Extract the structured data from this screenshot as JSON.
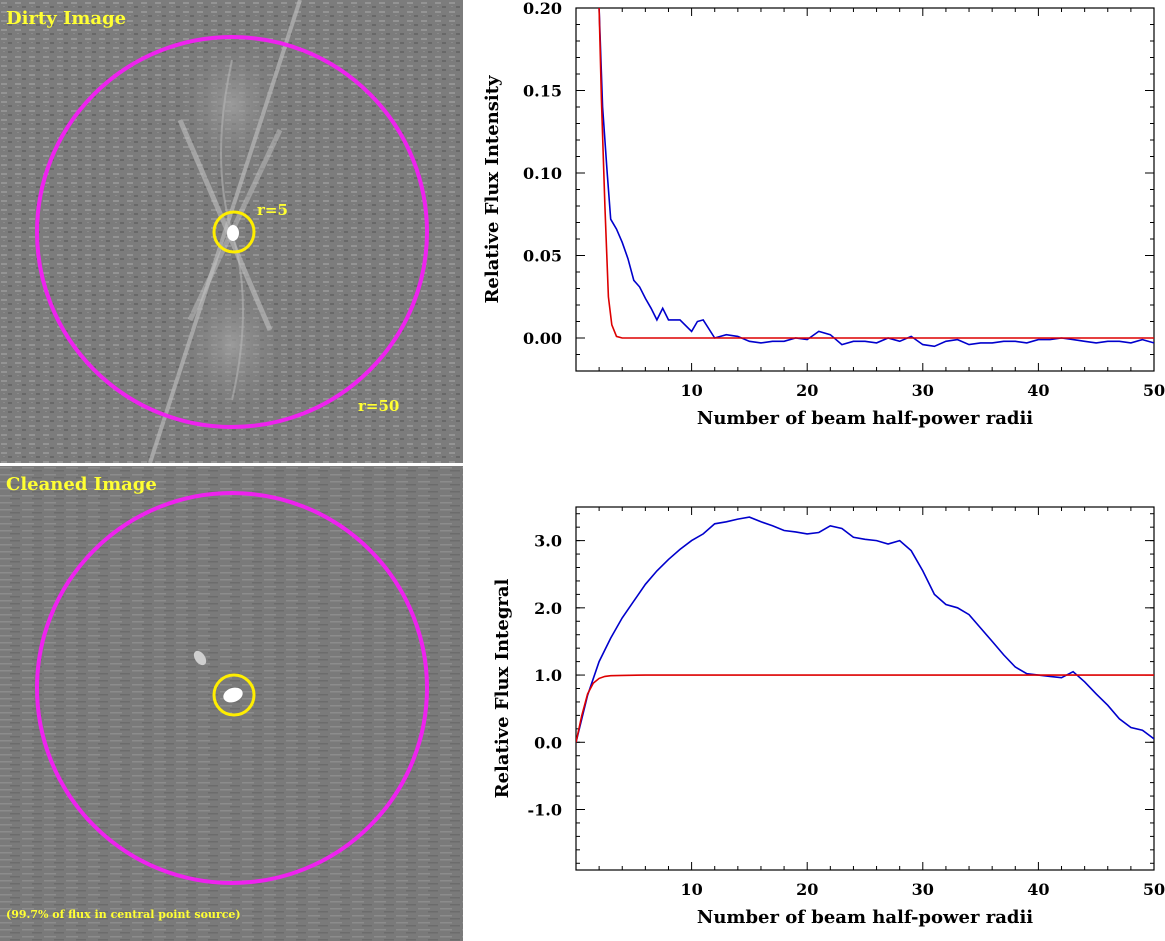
{
  "images": {
    "dirty": {
      "title": "Dirty Image",
      "inner_label": "r=5",
      "outer_label": "r=50"
    },
    "cleaned": {
      "title": "Cleaned Image",
      "note": "(99.7% of flux in central point source)"
    }
  },
  "colors": {
    "ring_outer": "#ee22ee",
    "ring_inner": "#ffee00",
    "series_blue": "#0000cc",
    "series_red": "#dd0000",
    "label_yellow": "#ffff33"
  },
  "chart_data": [
    {
      "type": "line",
      "title": "",
      "xlabel": "Number of beam half-power radii",
      "ylabel": "Relative Flux Intensity",
      "xlim": [
        0,
        50
      ],
      "ylim": [
        -0.02,
        0.2
      ],
      "xticks": [
        10,
        20,
        30,
        40,
        50
      ],
      "yticks": [
        0.0,
        0.05,
        0.1,
        0.15,
        0.2
      ],
      "ytick_labels": [
        "0.00",
        "0.05",
        "0.10",
        "0.15",
        "0.20"
      ],
      "grid": false,
      "series": [
        {
          "color": "blue",
          "x": [
            2.0,
            2.3,
            2.7,
            3.0,
            3.5,
            4.0,
            4.5,
            5.0,
            5.5,
            6.0,
            6.5,
            7.0,
            7.5,
            8.0,
            9.0,
            10.0,
            10.5,
            11.0,
            12.0,
            13.0,
            14.0,
            15.0,
            16.0,
            17.0,
            18.0,
            19.0,
            20.0,
            21.0,
            22.0,
            23.0,
            24.0,
            25.0,
            26.0,
            27.0,
            28.0,
            29.0,
            30.0,
            31.0,
            32.0,
            33.0,
            34.0,
            35.0,
            36.0,
            37.0,
            38.0,
            39.0,
            40.0,
            41.0,
            42.0,
            43.0,
            44.0,
            45.0,
            46.0,
            47.0,
            48.0,
            49.0,
            50.0
          ],
          "y": [
            0.2,
            0.14,
            0.1,
            0.072,
            0.066,
            0.058,
            0.048,
            0.035,
            0.031,
            0.024,
            0.018,
            0.011,
            0.018,
            0.011,
            0.011,
            0.004,
            0.01,
            0.011,
            0.0,
            0.002,
            0.001,
            -0.002,
            -0.003,
            -0.002,
            -0.002,
            0.0,
            -0.001,
            0.004,
            0.002,
            -0.004,
            -0.002,
            -0.002,
            -0.003,
            0.0,
            -0.002,
            0.001,
            -0.004,
            -0.005,
            -0.002,
            -0.001,
            -0.004,
            -0.003,
            -0.003,
            -0.002,
            -0.002,
            -0.003,
            -0.001,
            -0.001,
            0.0,
            -0.001,
            -0.002,
            -0.003,
            -0.002,
            -0.002,
            -0.003,
            -0.001,
            -0.003
          ]
        },
        {
          "color": "red",
          "x": [
            2.0,
            2.2,
            2.5,
            2.8,
            3.1,
            3.5,
            4.0,
            6.0,
            10.0,
            20.0,
            30.0,
            40.0,
            50.0
          ],
          "y": [
            0.2,
            0.145,
            0.08,
            0.025,
            0.008,
            0.001,
            0.0,
            0.0,
            0.0,
            0.0,
            0.0,
            0.0,
            0.0
          ]
        }
      ]
    },
    {
      "type": "line",
      "title": "",
      "xlabel": "Number of beam half-power radii",
      "ylabel": "Relative Flux Integral",
      "xlim": [
        0,
        50
      ],
      "ylim": [
        -1.9,
        3.5
      ],
      "xticks": [
        10,
        20,
        30,
        40,
        50
      ],
      "yticks": [
        -1.0,
        0.0,
        1.0,
        2.0,
        3.0
      ],
      "ytick_labels": [
        "-1.0",
        "0.0",
        "1.0",
        "2.0",
        "3.0"
      ],
      "grid": false,
      "series": [
        {
          "color": "blue",
          "x": [
            0.0,
            0.5,
            1.0,
            2.0,
            3.0,
            4.0,
            5.0,
            6.0,
            7.0,
            8.0,
            9.0,
            10.0,
            11.0,
            12.0,
            13.0,
            14.0,
            15.0,
            16.0,
            17.0,
            18.0,
            19.0,
            20.0,
            21.0,
            22.0,
            23.0,
            24.0,
            25.0,
            26.0,
            27.0,
            28.0,
            29.0,
            30.0,
            31.0,
            32.0,
            33.0,
            34.0,
            35.0,
            36.0,
            37.0,
            38.0,
            39.0,
            40.0,
            41.0,
            42.0,
            43.0,
            44.0,
            45.0,
            46.0,
            47.0,
            48.0,
            49.0,
            50.0
          ],
          "y": [
            0.0,
            0.35,
            0.7,
            1.2,
            1.55,
            1.85,
            2.1,
            2.35,
            2.55,
            2.72,
            2.87,
            3.0,
            3.1,
            3.25,
            3.28,
            3.32,
            3.35,
            3.28,
            3.22,
            3.15,
            3.13,
            3.1,
            3.12,
            3.22,
            3.18,
            3.05,
            3.02,
            3.0,
            2.95,
            3.0,
            2.85,
            2.55,
            2.2,
            2.05,
            2.0,
            1.9,
            1.7,
            1.5,
            1.3,
            1.12,
            1.02,
            1.0,
            0.98,
            0.96,
            1.05,
            0.9,
            0.72,
            0.55,
            0.35,
            0.22,
            0.18,
            0.05
          ]
        },
        {
          "color": "red",
          "x": [
            0.0,
            0.5,
            1.0,
            1.5,
            2.0,
            2.5,
            3.0,
            4.0,
            6.0,
            10.0,
            20.0,
            30.0,
            40.0,
            50.0
          ],
          "y": [
            0.0,
            0.4,
            0.72,
            0.88,
            0.95,
            0.98,
            0.99,
            0.995,
            1.0,
            1.0,
            1.0,
            1.0,
            1.0,
            1.0
          ]
        }
      ]
    }
  ]
}
